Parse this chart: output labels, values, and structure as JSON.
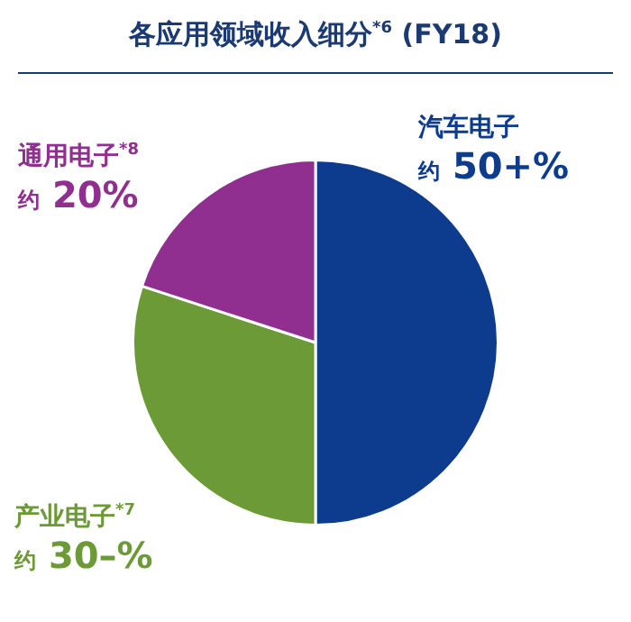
{
  "chart_data": {
    "type": "pie",
    "title": "各应用领域收入细分$^{*6}$ (FY18)",
    "categories": [
      "汽车电子",
      "产业电子$^{*7}$",
      "通用电子$^{*8}$"
    ],
    "values": [
      50,
      30,
      20
    ],
    "value_labels": [
      "约 50+%",
      "约 30–%",
      "约 20%"
    ],
    "colors": [
      "#0d3b8e",
      "#6b9a37",
      "#902f8f"
    ],
    "legend": false
  }
}
